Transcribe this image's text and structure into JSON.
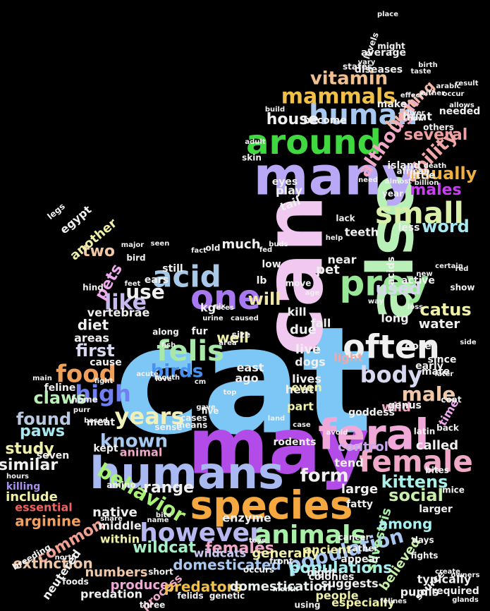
{
  "image": {
    "description_kind": "word-cloud",
    "shape": "sitting cat silhouette",
    "background": "#000000"
  },
  "words": [
    {
      "text": "cat",
      "color": "#7cc7f5"
    },
    {
      "text": "can",
      "color": "#f0c8f0"
    },
    {
      "text": "may",
      "color": "#b34be8"
    },
    {
      "text": "also",
      "color": "#b8f0b8"
    },
    {
      "text": "many",
      "color": "#b8a8f5"
    },
    {
      "text": "humans",
      "color": "#a8b8f0"
    },
    {
      "text": "species",
      "color": "#f5a840"
    },
    {
      "text": "feral",
      "color": "#f0a8d8"
    },
    {
      "text": "around",
      "color": "#40d840"
    },
    {
      "text": "human",
      "color": "#a8c8f0"
    },
    {
      "text": "small",
      "color": "#d8f0a8"
    },
    {
      "text": "prey",
      "color": "#98e898"
    },
    {
      "text": "one",
      "color": "#a878f0"
    },
    {
      "text": "often",
      "color": "#f0f0f0"
    },
    {
      "text": "acid",
      "color": "#a8c8e8"
    },
    {
      "text": "female",
      "color": "#f0a8c8"
    },
    {
      "text": "however",
      "color": "#b8b8f0"
    },
    {
      "text": "animals",
      "color": "#a8f0a8"
    },
    {
      "text": "mammals",
      "color": "#f0c048"
    },
    {
      "text": "felis",
      "color": "#a8e8a8"
    },
    {
      "text": "food",
      "color": "#f0a058"
    },
    {
      "text": "body",
      "color": "#d8d8f0"
    },
    {
      "text": "years",
      "color": "#f0f0b8"
    },
    {
      "text": "known",
      "color": "#a8c8f0"
    },
    {
      "text": "behavior",
      "color": "#a8f078"
    },
    {
      "text": "high",
      "color": "#7080f0"
    },
    {
      "text": "male",
      "color": "#f0c8a8"
    },
    {
      "text": "population",
      "color": "#a8c8f0"
    },
    {
      "text": "although",
      "color": "#f0a8c8"
    },
    {
      "text": "ability",
      "color": "#f0a8a8"
    },
    {
      "text": "vitamin",
      "color": "#f0c090"
    },
    {
      "text": "house",
      "color": "#f0f0f0"
    },
    {
      "text": "hunting",
      "color": "#f0b8a8"
    },
    {
      "text": "several",
      "color": "#f0a0a0"
    },
    {
      "text": "usually",
      "color": "#f0b040"
    },
    {
      "text": "males",
      "color": "#c840f0"
    },
    {
      "text": "word",
      "color": "#a8e8f0"
    },
    {
      "text": "used",
      "color": "#d8d8f0"
    },
    {
      "text": "like",
      "color": "#c8b8f0"
    },
    {
      "text": "use",
      "color": "#f0f0f0"
    },
    {
      "text": "birds",
      "color": "#4890f0"
    },
    {
      "text": "pets",
      "color": "#f0a8f0"
    },
    {
      "text": "two",
      "color": "#f0c8a8"
    },
    {
      "text": "will",
      "color": "#f0e8a8"
    },
    {
      "text": "catus",
      "color": "#f0f0a8"
    },
    {
      "text": "first",
      "color": "#d8d8f0"
    },
    {
      "text": "diet",
      "color": "#f0f0f0"
    },
    {
      "text": "claws",
      "color": "#b8f0b8"
    },
    {
      "text": "found",
      "color": "#b8c8e0"
    },
    {
      "text": "paws",
      "color": "#a8e8f0"
    },
    {
      "text": "study",
      "color": "#f0f0a8"
    },
    {
      "text": "similar",
      "color": "#f0f0f0"
    },
    {
      "text": "form",
      "color": "#f0f0f0"
    },
    {
      "text": "kittens",
      "color": "#a8f0e8"
    },
    {
      "text": "social",
      "color": "#c8f0a8"
    },
    {
      "text": "range",
      "color": "#f0f0f0"
    },
    {
      "text": "wildcat",
      "color": "#a8f0c8"
    },
    {
      "text": "females",
      "color": "#f0a8c8"
    },
    {
      "text": "domesticated",
      "color": "#a8c8f0"
    },
    {
      "text": "wildcats",
      "color": "#c8c8f0"
    },
    {
      "text": "common",
      "color": "#f0a090"
    },
    {
      "text": "extinction",
      "color": "#f0c8a8"
    },
    {
      "text": "arginine",
      "color": "#f0a060"
    },
    {
      "text": "include",
      "color": "#f0f0a8"
    },
    {
      "text": "killing",
      "color": "#a890f0"
    },
    {
      "text": "essential",
      "color": "#f06060"
    },
    {
      "text": "numbers",
      "color": "#f0c8a8"
    },
    {
      "text": "produce",
      "color": "#f0a8d8"
    },
    {
      "text": "process",
      "color": "#f0a8c8"
    },
    {
      "text": "predators",
      "color": "#f0c048"
    },
    {
      "text": "domestication",
      "color": "#e8f0f0"
    },
    {
      "text": "populations",
      "color": "#a8f0f0"
    },
    {
      "text": "generally",
      "color": "#f0f0a8"
    },
    {
      "text": "ancient",
      "color": "#f0f0a8"
    },
    {
      "text": "believed",
      "color": "#c8f0a8"
    },
    {
      "text": "suggests",
      "color": "#f0f0f0"
    },
    {
      "text": "people",
      "color": "#f0f0a8"
    },
    {
      "text": "especially",
      "color": "#f0f0a8"
    },
    {
      "text": "typically",
      "color": "#f0f0f0"
    },
    {
      "text": "pupils",
      "color": "#f0f0f0"
    },
    {
      "text": "required",
      "color": "#f0f0f0"
    },
    {
      "text": "silvestris",
      "color": "#a8f0a8"
    },
    {
      "text": "among",
      "color": "#a8f0f0"
    },
    {
      "text": "control",
      "color": "#c8a8f0"
    },
    {
      "text": "called",
      "color": "#f0f0f0"
    },
    {
      "text": "time",
      "color": "#f0a8f0"
    },
    {
      "text": "wild",
      "color": "#f0a8c8"
    },
    {
      "text": "large",
      "color": "#f0f0f0"
    },
    {
      "text": "tend",
      "color": "#f0f0f0"
    },
    {
      "text": "fatty",
      "color": "#f0f0f0"
    },
    {
      "text": "larger",
      "color": "#f0f0f0"
    },
    {
      "text": "native",
      "color": "#f0f0f0"
    },
    {
      "text": "middle",
      "color": "#f0f0f0"
    },
    {
      "text": "within",
      "color": "#f0f0a8"
    },
    {
      "text": "enzyme",
      "color": "#f0f0f0"
    },
    {
      "text": "animal",
      "color": "#f0a8c8"
    },
    {
      "text": "kept",
      "color": "#f0f0f0"
    },
    {
      "text": "meat",
      "color": "#f0f0f0"
    },
    {
      "text": "feline",
      "color": "#f0f0f0"
    },
    {
      "text": "home",
      "color": "#f0f0f0"
    },
    {
      "text": "seven",
      "color": "#f0f0f0"
    },
    {
      "text": "areas",
      "color": "#f0f0f0"
    },
    {
      "text": "cause",
      "color": "#f0f0f0"
    },
    {
      "text": "well",
      "color": "#f0f0a8"
    },
    {
      "text": "east",
      "color": "#f0f0f0"
    },
    {
      "text": "ago",
      "color": "#f0f0f0"
    },
    {
      "text": "due",
      "color": "#f0f0f0"
    },
    {
      "text": "live",
      "color": "#f0f0f0"
    },
    {
      "text": "dogs",
      "color": "#f0f0f0"
    },
    {
      "text": "heat",
      "color": "#f0f0f0"
    },
    {
      "text": "lives",
      "color": "#f0f0f0"
    },
    {
      "text": "even",
      "color": "#f0f0a8"
    },
    {
      "text": "part",
      "color": "#f0f0a8"
    },
    {
      "text": "light",
      "color": "#f0a8a8"
    },
    {
      "text": "fall",
      "color": "#f0f0f0"
    },
    {
      "text": "kill",
      "color": "#f0f0f0"
    },
    {
      "text": "water",
      "color": "#f0f0f0"
    },
    {
      "text": "long",
      "color": "#f0f0f0"
    },
    {
      "text": "dose",
      "color": "#f0f0f0"
    },
    {
      "text": "early",
      "color": "#f0f0f0"
    },
    {
      "text": "genus",
      "color": "#f0f0f0"
    },
    {
      "text": "since",
      "color": "#f0f0f0"
    },
    {
      "text": "mate",
      "color": "#f0f0f0"
    },
    {
      "text": "much",
      "color": "#f0f0f0"
    },
    {
      "text": "kg",
      "color": "#f0f0f0"
    },
    {
      "text": "fur",
      "color": "#f0f0f0"
    },
    {
      "text": "ears",
      "color": "#f0f0f0"
    },
    {
      "text": "still",
      "color": "#f0f0f0"
    },
    {
      "text": "low",
      "color": "#f0f0f0"
    },
    {
      "text": "lb",
      "color": "#f0f0f0"
    },
    {
      "text": "pet",
      "color": "#f0f0f0"
    },
    {
      "text": "teeth",
      "color": "#f0f0f0"
    },
    {
      "text": "near",
      "color": "#f0f0f0"
    },
    {
      "text": "less",
      "color": "#f0f0f0"
    },
    {
      "text": "vertebrae",
      "color": "#f0f0f0"
    },
    {
      "text": "another",
      "color": "#f0f0a8"
    },
    {
      "text": "egypt",
      "color": "#f0f0f0"
    },
    {
      "text": "legs",
      "color": "#f0f0f0"
    },
    {
      "text": "bird",
      "color": "#f0f0f0"
    },
    {
      "text": "hind",
      "color": "#f0f0f0"
    },
    {
      "text": "play",
      "color": "#f0f0f0"
    },
    {
      "text": "eyes",
      "color": "#f0f0f0"
    },
    {
      "text": "skin",
      "color": "#f0f0f0"
    },
    {
      "text": "tail",
      "color": "#f0f0f0"
    },
    {
      "text": "lack",
      "color": "#f0f0f0"
    },
    {
      "text": "year",
      "color": "#f0f0f0"
    },
    {
      "text": "island",
      "color": "#f0f0f0"
    },
    {
      "text": "little",
      "color": "#f0f0f0"
    },
    {
      "text": "hunt",
      "color": "#f0f0f0"
    },
    {
      "text": "make",
      "color": "#f0f0f0"
    },
    {
      "text": "needed",
      "color": "#f0f0f0"
    },
    {
      "text": "become",
      "color": "#f0f0f0"
    },
    {
      "text": "diseases",
      "color": "#f0f0f0"
    },
    {
      "text": "states",
      "color": "#f0f0f0"
    },
    {
      "text": "average",
      "color": "#f0f0f0"
    },
    {
      "text": "levels",
      "color": "#f0f0f0"
    },
    {
      "text": "might",
      "color": "#f0f0f0"
    },
    {
      "text": "african",
      "color": "#f0f0f0"
    },
    {
      "text": "billion",
      "color": "#f0f0f0"
    },
    {
      "text": "others",
      "color": "#f0f0f0"
    },
    {
      "text": "allows",
      "color": "#f0f0f0"
    },
    {
      "text": "taste",
      "color": "#f0f0f0"
    },
    {
      "text": "place",
      "color": "#f0f0f0"
    },
    {
      "text": "result",
      "color": "#f0f0f0"
    },
    {
      "text": "vary",
      "color": "#f0f0f0"
    },
    {
      "text": "now",
      "color": "#f0f0f0"
    },
    {
      "text": "adult",
      "color": "#f0f0f0"
    },
    {
      "text": "cases",
      "color": "#f0f0f0"
    },
    {
      "text": "rodents",
      "color": "#f0f0f0"
    },
    {
      "text": "size",
      "color": "#f0f0f0"
    },
    {
      "text": "along",
      "color": "#f0f0f0"
    },
    {
      "text": "gave",
      "color": "#f0f0f0"
    },
    {
      "text": "five",
      "color": "#f0f0f0"
    },
    {
      "text": "top",
      "color": "#f0f0f0"
    },
    {
      "text": "land",
      "color": "#f0f0f0"
    },
    {
      "text": "avoid",
      "color": "#f0f0f0"
    },
    {
      "text": "bites",
      "color": "#f0f0f0"
    },
    {
      "text": "latin",
      "color": "#f0f0f0"
    },
    {
      "text": "back",
      "color": "#f0f0f0"
    },
    {
      "text": "coat",
      "color": "#f0f0f0"
    },
    {
      "text": "goddess",
      "color": "#f0f0f0"
    },
    {
      "text": "colonies",
      "color": "#f0f0f0"
    },
    {
      "text": "night",
      "color": "#f0f0f0"
    },
    {
      "text": "appear",
      "color": "#f0f0f0"
    },
    {
      "text": "rather",
      "color": "#f0f0f0"
    },
    {
      "text": "cancer",
      "color": "#f0f0f0"
    },
    {
      "text": "front",
      "color": "#f0f0f0"
    },
    {
      "text": "occurs",
      "color": "#f0f0f0"
    },
    {
      "text": "short",
      "color": "#f0f0f0"
    },
    {
      "text": "fights",
      "color": "#f0f0f0"
    },
    {
      "text": "create",
      "color": "#f0f0f0"
    },
    {
      "text": "source",
      "color": "#f0f0f0"
    },
    {
      "text": "owners",
      "color": "#f0f0f0"
    },
    {
      "text": "felines",
      "color": "#f0f0f0"
    },
    {
      "text": "felids",
      "color": "#f0f0f0"
    },
    {
      "text": "genetic",
      "color": "#f0f0f0"
    },
    {
      "text": "three",
      "color": "#f0f0f0"
    },
    {
      "text": "using",
      "color": "#f0f0f0"
    },
    {
      "text": "glands",
      "color": "#f0f0f0"
    },
    {
      "text": "predation",
      "color": "#f0f0f0"
    },
    {
      "text": "neutered",
      "color": "#f0f0f0"
    },
    {
      "text": "breeding",
      "color": "#f0f0f0"
    },
    {
      "text": "foods",
      "color": "#f0f0f0"
    },
    {
      "text": "days",
      "color": "#f0f0f0"
    },
    {
      "text": "mice",
      "color": "#f0f0f0"
    },
    {
      "text": "active",
      "color": "#f0f0f0"
    },
    {
      "text": "acids",
      "color": "#f0f0f0"
    },
    {
      "text": "show",
      "color": "#f0f0f0"
    },
    {
      "text": "move",
      "color": "#f0f0f0"
    },
    {
      "text": "urine",
      "color": "#f0f0f0"
    },
    {
      "text": "old",
      "color": "#f0f0f0"
    },
    {
      "text": "fed",
      "color": "#f0f0f0"
    },
    {
      "text": "fact",
      "color": "#f0f0f0"
    },
    {
      "text": "six",
      "color": "#f0f0f0"
    },
    {
      "text": "means",
      "color": "#f0f0f0"
    },
    {
      "text": "sense",
      "color": "#f0f0f0"
    },
    {
      "text": "amino",
      "color": "#f0f0f0"
    },
    {
      "text": "fight",
      "color": "#f0f0f0"
    },
    {
      "text": "main",
      "color": "#f0f0f0"
    },
    {
      "text": "hours",
      "color": "#f0f0f0"
    },
    {
      "text": "north",
      "color": "#f0f0f0"
    },
    {
      "text": "bite",
      "color": "#f0f0f0"
    },
    {
      "text": "name",
      "color": "#f0f0f0"
    },
    {
      "text": "love",
      "color": "#f0f0f0"
    },
    {
      "text": "toys",
      "color": "#f0f0f0"
    },
    {
      "text": "need",
      "color": "#f0f0f0"
    },
    {
      "text": "almost",
      "color": "#f0f0f0"
    },
    {
      "text": "death",
      "color": "#f0f0f0"
    },
    {
      "text": "occur",
      "color": "#f0f0f0"
    },
    {
      "text": "arabic",
      "color": "#f0f0f0"
    },
    {
      "text": "either",
      "color": "#f0f0f0"
    },
    {
      "text": "effect",
      "color": "#f0f0f0"
    },
    {
      "text": "birth",
      "color": "#f0f0f0"
    },
    {
      "text": "build",
      "color": "#f0f0f0"
    },
    {
      "text": "liver",
      "color": "#f0f0f0"
    },
    {
      "text": "certain",
      "color": "#f0f0f0"
    },
    {
      "text": "seen",
      "color": "#f0f0f0"
    },
    {
      "text": "major",
      "color": "#f0f0f0"
    },
    {
      "text": "feces",
      "color": "#f0f0f0"
    },
    {
      "text": "caused",
      "color": "#f0f0f0"
    },
    {
      "text": "loss",
      "color": "#f0f0f0"
    },
    {
      "text": "way",
      "color": "#f0f0f0"
    },
    {
      "text": "feet",
      "color": "#f0f0f0"
    },
    {
      "text": "acute",
      "color": "#f0f0f0"
    },
    {
      "text": "mouth",
      "color": "#f0f0f0"
    },
    {
      "text": "later",
      "color": "#f0f0f0"
    },
    {
      "text": "side",
      "color": "#f0f0f0"
    },
    {
      "text": "case",
      "color": "#f0f0f0"
    },
    {
      "text": "based",
      "color": "#f0f0f0"
    },
    {
      "text": "purr",
      "color": "#f0f0f0"
    },
    {
      "text": "share",
      "color": "#f0f0f0"
    },
    {
      "text": "month",
      "color": "#f0f0f0"
    },
    {
      "text": "fish",
      "color": "#f0f0f0"
    },
    {
      "text": "help",
      "color": "#f0f0f0"
    },
    {
      "text": "age",
      "color": "#f0f0f0"
    },
    {
      "text": "cm",
      "color": "#f0f0f0"
    },
    {
      "text": "buds",
      "color": "#f0f0f0"
    },
    {
      "text": "area",
      "color": "#f0f0f0"
    },
    {
      "text": "new",
      "color": "#f0f0f0"
    },
    {
      "text": "red",
      "color": "#f0f0f0"
    }
  ]
}
